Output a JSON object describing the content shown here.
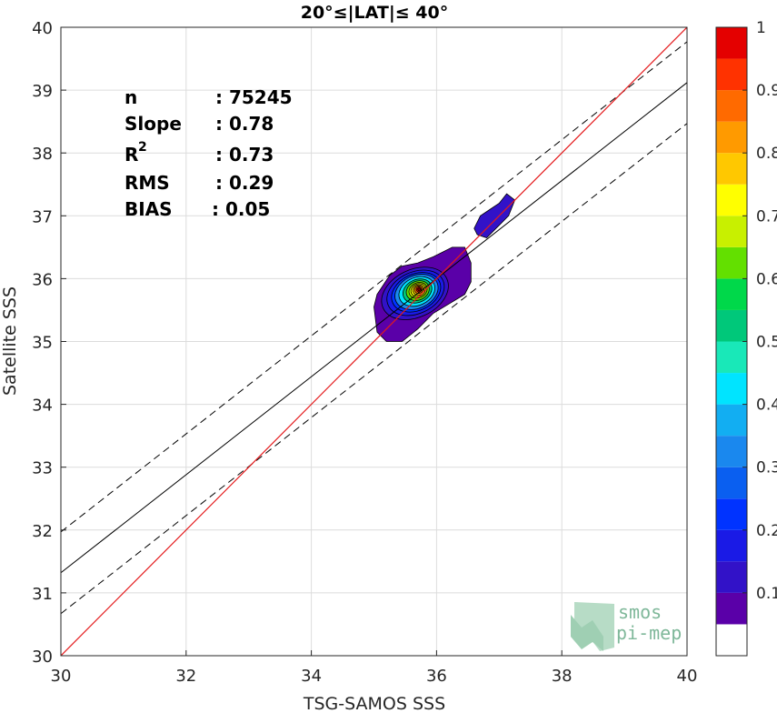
{
  "chart_data": {
    "type": "contour-scatter",
    "title": "20°≤|LAT|≤ 40°",
    "xlabel": "TSG-SAMOS SSS",
    "ylabel": "Satellite SSS",
    "xlim": [
      30,
      40
    ],
    "ylim": [
      30,
      40
    ],
    "xticks": [
      30,
      32,
      34,
      36,
      38,
      40
    ],
    "yticks": [
      30,
      31,
      32,
      33,
      34,
      35,
      36,
      37,
      38,
      39,
      40
    ],
    "grid": true,
    "stats": [
      {
        "label": "n",
        "value": ": 75245"
      },
      {
        "label": "Slope",
        "value": ": 0.78"
      },
      {
        "label": "R",
        "sup": "2",
        "value": ": 0.73"
      },
      {
        "label": "RMS",
        "value": ": 0.29"
      },
      {
        "label": "BIAS",
        "value": ": 0.05"
      }
    ],
    "lines": {
      "identity": {
        "slope": 1,
        "intercept": 0,
        "color": "#e41a1c"
      },
      "fit": {
        "x0": 30,
        "y0": 31.32,
        "x1": 40,
        "y1": 39.12
      },
      "fit_band_offset": 0.65
    },
    "density_peak": {
      "x": 35.72,
      "y": 35.83
    },
    "secondary_cluster": {
      "x_range": [
        36.6,
        37.25
      ],
      "y_range": [
        36.65,
        37.35
      ]
    },
    "colorbar": {
      "ticks": [
        0.1,
        0.2,
        0.3,
        0.4,
        0.5,
        0.6,
        0.7,
        0.8,
        0.9,
        1
      ],
      "tick_labels": [
        "0.1",
        "0.2",
        "0.3",
        "0.4",
        "0.5",
        "0.6",
        "0.7",
        "0.8",
        "0.9",
        "1"
      ],
      "levels": [
        0,
        0.05,
        0.1,
        0.15,
        0.2,
        0.25,
        0.3,
        0.35,
        0.4,
        0.45,
        0.5,
        0.55,
        0.6,
        0.65,
        0.7,
        0.75,
        0.8,
        0.85,
        0.9,
        0.95,
        1
      ],
      "colors": [
        "#ffffff",
        "#5a00a8",
        "#3212c8",
        "#1a1ae6",
        "#0033ff",
        "#0a5ff0",
        "#1a88ee",
        "#12aef2",
        "#00e4ff",
        "#19e8b8",
        "#00c87a",
        "#00d84a",
        "#63e000",
        "#c8f000",
        "#ffff00",
        "#ffc800",
        "#ff9a00",
        "#ff6a00",
        "#ff3200",
        "#e40000",
        "#8c0000"
      ]
    }
  },
  "watermark": {
    "line1": "smos",
    "line2": "pi-mep"
  }
}
